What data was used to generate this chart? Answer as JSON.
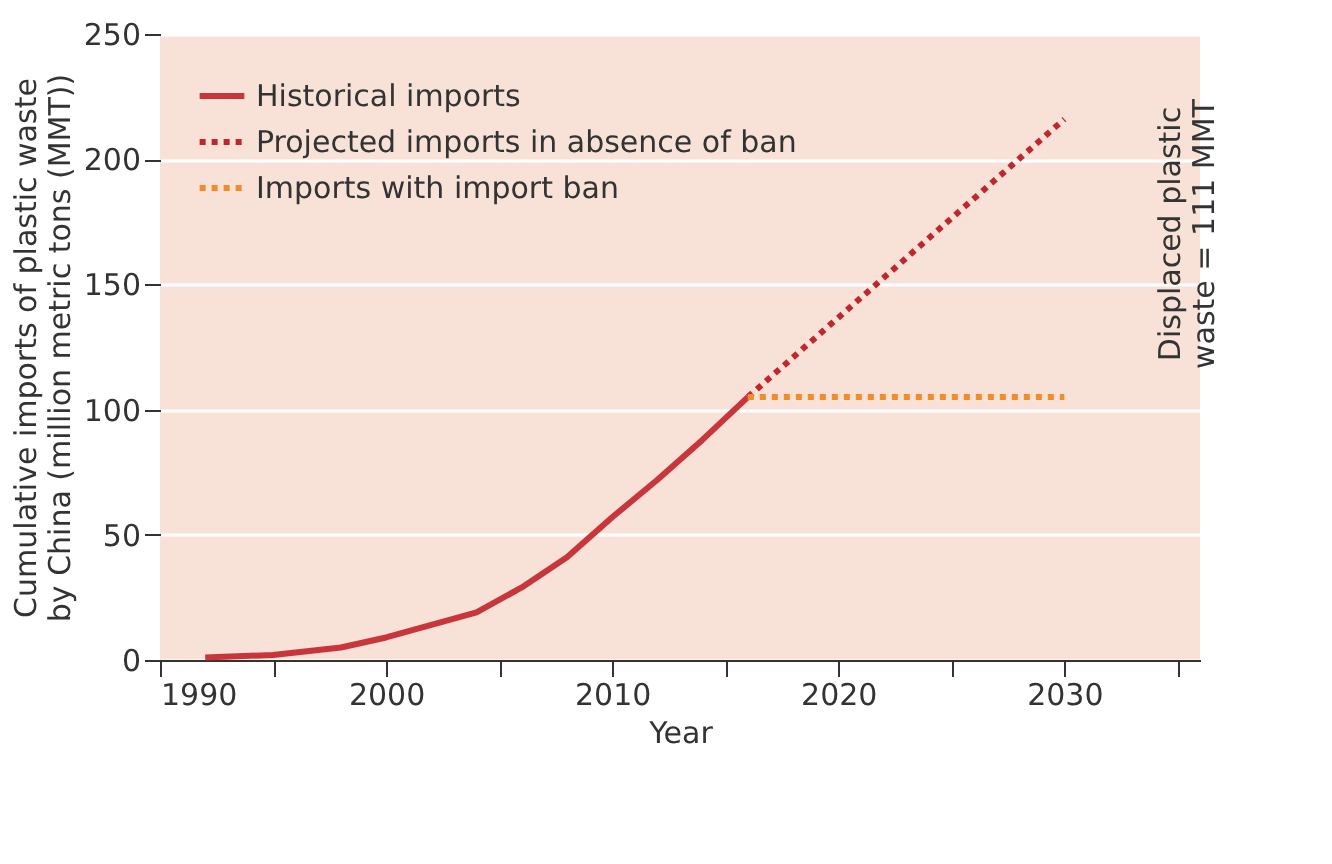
{
  "chart_data": {
    "type": "line",
    "xlabel": "Year",
    "ylabel": "Cumulative imports of plastic waste\nby China (million metric tons (MMT))",
    "series": [
      {
        "name": "Historical imports",
        "color": "#c8353a",
        "line_style": "solid",
        "x": [
          1992,
          1995,
          1998,
          2000,
          2002,
          2004,
          2006,
          2008,
          2010,
          2012,
          2014,
          2016
        ],
        "values": [
          1,
          2,
          5,
          9,
          14,
          19,
          29,
          41,
          57,
          72,
          88,
          105
        ]
      },
      {
        "name": "Projected imports in absence of ban",
        "color": "#c0272d",
        "line_style": "dotted",
        "x": [
          2016,
          2030
        ],
        "values": [
          105,
          216
        ]
      },
      {
        "name": "Imports with import ban",
        "color": "#f28c28",
        "line_style": "dotted",
        "x": [
          2016,
          2030
        ],
        "values": [
          105,
          105
        ]
      }
    ],
    "xlim": [
      1990,
      2036
    ],
    "xticks": [
      1990,
      {
        "value": 1995,
        "label": null
      },
      2000,
      {
        "value": 2005,
        "label": null
      },
      2010,
      {
        "value": 2015,
        "label": null
      },
      2020,
      {
        "value": 2025,
        "label": null
      },
      2030,
      {
        "value": 2035,
        "label": null
      }
    ],
    "ylim": [
      0,
      250
    ],
    "yticks": [
      0,
      50,
      100,
      150,
      200,
      250
    ],
    "grid": "y",
    "legend": "top left",
    "marker": "none",
    "annotations": [
      "Displaced plastic\nwaste = 111 MMT"
    ]
  }
}
